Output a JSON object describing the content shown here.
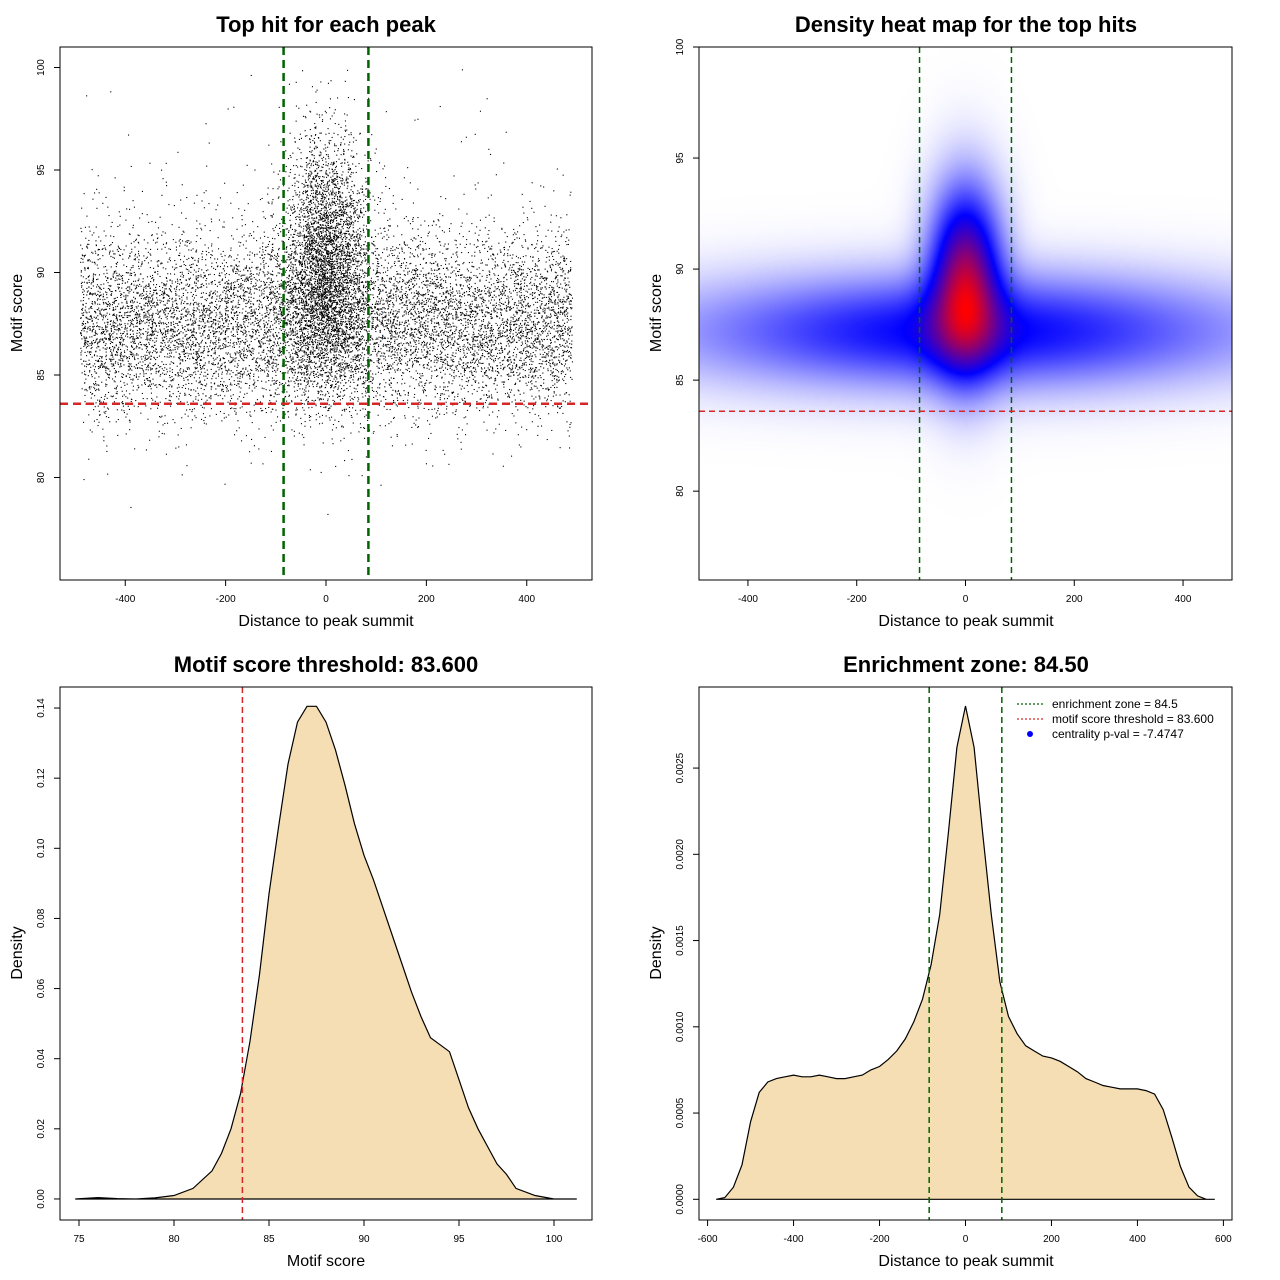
{
  "chart_data": [
    {
      "id": "scatter",
      "type": "scatter",
      "title": "Top hit for each peak",
      "xlabel": "Distance to peak summit",
      "ylabel": "Motif score",
      "xlim": [
        -530,
        530
      ],
      "ylim": [
        75,
        101
      ],
      "xticks": [
        -400,
        -200,
        0,
        200,
        400
      ],
      "yticks": [
        80,
        85,
        90,
        95,
        100
      ],
      "point_color": "#000000",
      "n_points_approx": 14000,
      "distribution": {
        "x_range": [
          -490,
          490
        ],
        "central_score_mean": 90.5,
        "central_score_sd": 3.0,
        "central_x_sd": 40,
        "background_score_mean": 87.5,
        "background_score_sd": 2.2,
        "central_fraction": 0.27
      },
      "vlines": [
        {
          "x": -84.5,
          "color": "#006400",
          "style": "dashed"
        },
        {
          "x": 84.5,
          "color": "#006400",
          "style": "dashed"
        }
      ],
      "hlines": [
        {
          "y": 83.6,
          "color": "#d62728",
          "style": "dashed"
        }
      ]
    },
    {
      "id": "heatmap",
      "type": "heatmap",
      "title": "Density heat map for the top hits",
      "xlabel": "Distance to peak summit",
      "ylabel": "Motif score",
      "xlim": [
        -490,
        490
      ],
      "ylim": [
        76,
        100
      ],
      "xticks": [
        -400,
        -200,
        0,
        200,
        400
      ],
      "yticks": [
        80,
        85,
        90,
        95,
        100
      ],
      "colors": {
        "low": "#ffffff",
        "mid": "#0000ff",
        "high": "#ff0000"
      },
      "components": [
        {
          "name": "background",
          "x_center": 0,
          "x_sd": 330,
          "y_center": 87.2,
          "y_sd": 1.6,
          "weight": 0.55
        },
        {
          "name": "central",
          "x_center": 0,
          "x_sd": 42,
          "y_center": 89.5,
          "y_sd": 2.6,
          "weight": 1.0
        }
      ],
      "vlines": [
        {
          "x": -84.5,
          "color": "#006400",
          "style": "dashed"
        },
        {
          "x": 84.5,
          "color": "#006400",
          "style": "dashed"
        }
      ],
      "hlines": [
        {
          "y": 83.6,
          "color": "#d62728",
          "style": "dashed"
        }
      ]
    },
    {
      "id": "score_density",
      "type": "area",
      "title": "Motif score threshold: 83.600",
      "xlabel": "Motif score",
      "ylabel": "Density",
      "xlim": [
        74,
        102
      ],
      "ylim": [
        -0.006,
        0.146
      ],
      "xticks": [
        75,
        80,
        85,
        90,
        95,
        100
      ],
      "yticks": [
        0.0,
        0.02,
        0.04,
        0.06,
        0.08,
        0.1,
        0.12,
        0.14
      ],
      "ytick_labels": [
        "0.00",
        "0.02",
        "0.04",
        "0.06",
        "0.08",
        "0.10",
        "0.12",
        "0.14"
      ],
      "fill": "#f5deb3",
      "x": [
        74.8,
        76,
        77,
        78,
        79,
        80,
        81,
        82,
        82.5,
        83,
        83.5,
        84,
        84.5,
        85,
        85.5,
        86,
        86.5,
        87,
        87.5,
        88,
        88.5,
        89,
        89.5,
        90,
        90.5,
        91,
        91.5,
        92,
        92.5,
        93,
        93.5,
        94,
        94.5,
        95,
        95.5,
        96,
        96.5,
        97,
        97.5,
        98,
        99,
        100,
        101.2
      ],
      "y": [
        0.0,
        0.0004,
        0.0001,
        0.0,
        0.0003,
        0.001,
        0.003,
        0.008,
        0.013,
        0.02,
        0.03,
        0.045,
        0.064,
        0.087,
        0.106,
        0.124,
        0.136,
        0.1405,
        0.1405,
        0.136,
        0.128,
        0.118,
        0.107,
        0.098,
        0.091,
        0.083,
        0.075,
        0.067,
        0.059,
        0.052,
        0.046,
        0.044,
        0.042,
        0.034,
        0.026,
        0.02,
        0.015,
        0.01,
        0.007,
        0.003,
        0.001,
        0.0,
        0.0
      ],
      "vlines": [
        {
          "x": 83.6,
          "color": "#d62728",
          "style": "dashed"
        }
      ]
    },
    {
      "id": "distance_density",
      "type": "area",
      "title": "Enrichment zone: 84.50",
      "xlabel": "Distance to peak summit",
      "ylabel": "Density",
      "xlim": [
        -620,
        620
      ],
      "ylim": [
        -0.00012,
        0.00297
      ],
      "xticks": [
        -600,
        -400,
        -200,
        0,
        200,
        400,
        600
      ],
      "yticks": [
        0.0,
        0.0005,
        0.001,
        0.0015,
        0.002,
        0.0025
      ],
      "ytick_labels": [
        "0.0000",
        "0.0005",
        "0.0010",
        "0.0015",
        "0.0020",
        "0.0025"
      ],
      "fill": "#f5deb3",
      "x": [
        -580,
        -560,
        -540,
        -520,
        -500,
        -480,
        -460,
        -440,
        -420,
        -400,
        -380,
        -360,
        -340,
        -320,
        -300,
        -280,
        -260,
        -240,
        -220,
        -200,
        -180,
        -160,
        -140,
        -120,
        -100,
        -80,
        -60,
        -40,
        -20,
        0,
        20,
        40,
        60,
        80,
        100,
        120,
        140,
        160,
        180,
        200,
        220,
        240,
        260,
        280,
        300,
        320,
        340,
        360,
        380,
        400,
        420,
        440,
        460,
        480,
        500,
        520,
        540,
        560,
        580
      ],
      "y": [
        0.0,
        1e-05,
        7e-05,
        0.0002,
        0.00045,
        0.00062,
        0.00068,
        0.0007,
        0.00071,
        0.00072,
        0.00071,
        0.00071,
        0.00072,
        0.00071,
        0.0007,
        0.0007,
        0.00071,
        0.00072,
        0.00075,
        0.00077,
        0.00081,
        0.00086,
        0.00093,
        0.00103,
        0.00116,
        0.00136,
        0.00165,
        0.00212,
        0.00262,
        0.00286,
        0.00262,
        0.00212,
        0.00165,
        0.00126,
        0.00106,
        0.00096,
        0.00089,
        0.00086,
        0.00083,
        0.00082,
        0.0008,
        0.00077,
        0.00074,
        0.0007,
        0.00068,
        0.00066,
        0.00065,
        0.00064,
        0.00064,
        0.00064,
        0.00063,
        0.00061,
        0.00052,
        0.00036,
        0.00019,
        7e-05,
        2e-05,
        0.0,
        0.0
      ],
      "vlines": [
        {
          "x": -84.5,
          "color": "#006400",
          "style": "dashed"
        },
        {
          "x": 84.5,
          "color": "#006400",
          "style": "dashed"
        }
      ],
      "legend": {
        "position": "top-right",
        "entries": [
          {
            "label": "enrichment zone = 84.5",
            "color": "#006400",
            "symbol": "dotted-line"
          },
          {
            "label": "motif score threshold = 83.600",
            "color": "#d62728",
            "symbol": "dotted-line"
          },
          {
            "label": "centrality p-val = -7.4747",
            "color": "#0000ff",
            "symbol": "point"
          }
        ]
      }
    }
  ]
}
